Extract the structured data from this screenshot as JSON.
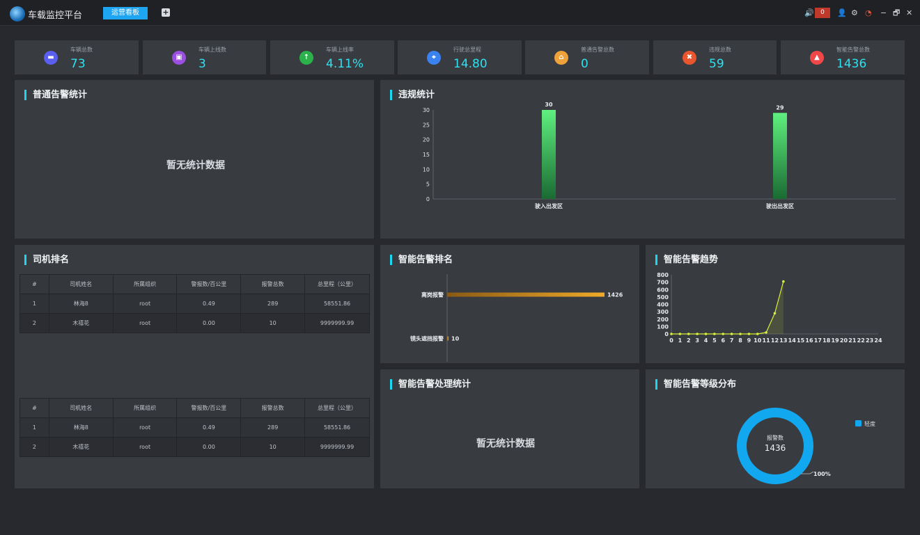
{
  "titlebar": {
    "app_title": "车载监控平台",
    "active_tab": "运营看板",
    "add_tab": "+",
    "alarm_count": "0",
    "minimize": "−",
    "restore": "🗗",
    "close": "✕"
  },
  "stats": [
    {
      "label": "车辆总数",
      "value": "73",
      "color": "#5b5ff0",
      "icon": "car-icon",
      "glyph": "▬"
    },
    {
      "label": "车辆上线数",
      "value": "3",
      "color": "#9b4fe0",
      "icon": "vehicle-online-icon",
      "glyph": "▣"
    },
    {
      "label": "车辆上线率",
      "value": "4.11%",
      "color": "#2bb24a",
      "icon": "arrow-up-icon",
      "glyph": "↑"
    },
    {
      "label": "行驶总里程",
      "value": "14.80",
      "color": "#3a82f0",
      "icon": "location-icon",
      "glyph": "⌖"
    },
    {
      "label": "普通告警总数",
      "value": "0",
      "color": "#f0a23a",
      "icon": "alarm-lamp-icon",
      "glyph": "⌂"
    },
    {
      "label": "违规总数",
      "value": "59",
      "color": "#e8552f",
      "icon": "violation-icon",
      "glyph": "✖"
    },
    {
      "label": "智能告警总数",
      "value": "1436",
      "color": "#f04848",
      "icon": "bell-icon",
      "glyph": "▲"
    }
  ],
  "panels": {
    "normal_alarm": {
      "title": "普通告警统计",
      "empty": "暂无统计数据"
    },
    "violation": {
      "title": "违规统计"
    },
    "driver_rank": {
      "title": "司机排名"
    },
    "smart_rank": {
      "title": "智能告警排名"
    },
    "smart_trend": {
      "title": "智能告警趋势"
    },
    "smart_handle": {
      "title": "智能告警处理统计",
      "empty": "暂无统计数据"
    },
    "smart_level": {
      "title": "智能告警等级分布"
    }
  },
  "driver_table": {
    "headers": [
      "#",
      "司机姓名",
      "所属组织",
      "警报数/百公里",
      "报警总数",
      "总里程（公里）"
    ],
    "rows": [
      [
        "1",
        "林海8",
        "root",
        "0.49",
        "289",
        "58551.86"
      ],
      [
        "2",
        "木禧花",
        "root",
        "0.00",
        "10",
        "9999999.99"
      ]
    ]
  },
  "donut_info": {
    "center_label": "报警数",
    "center_value": "1436",
    "percent_label": "100%",
    "legend": "轻度",
    "color": "#12a8f0"
  },
  "chart_data": [
    {
      "type": "bar",
      "title": "违规统计",
      "categories": [
        "驶入出发区",
        "驶出出发区"
      ],
      "values": [
        30,
        29
      ],
      "ylim": [
        0,
        30
      ],
      "yticks": [
        0,
        5,
        10,
        15,
        20,
        25,
        30
      ],
      "xlabel": "",
      "ylabel": "",
      "color": "#4fe37a"
    },
    {
      "type": "bar",
      "orientation": "horizontal",
      "title": "智能告警排名",
      "categories": [
        "离岗报警",
        "镜头遮挡报警"
      ],
      "values": [
        1426,
        10
      ],
      "color": "#e8a62a"
    },
    {
      "type": "area",
      "title": "智能告警趋势",
      "x": [
        0,
        1,
        2,
        3,
        4,
        5,
        6,
        7,
        8,
        9,
        10,
        11,
        12,
        13
      ],
      "y": [
        0,
        0,
        0,
        0,
        0,
        0,
        0,
        0,
        0,
        0,
        0,
        20,
        280,
        710
      ],
      "xticks": [
        0,
        1,
        2,
        3,
        4,
        5,
        6,
        7,
        8,
        9,
        10,
        11,
        12,
        13,
        14,
        15,
        16,
        17,
        18,
        19,
        20,
        21,
        22,
        23,
        24
      ],
      "yticks": [
        0,
        100,
        200,
        300,
        400,
        500,
        600,
        700,
        800
      ],
      "ylim": [
        0,
        800
      ],
      "xlim": [
        0,
        24
      ],
      "color": "#d8f03a"
    },
    {
      "type": "pie",
      "title": "智能告警等级分布",
      "slices": [
        {
          "name": "轻度",
          "value": 1436
        }
      ],
      "donut": true
    }
  ]
}
